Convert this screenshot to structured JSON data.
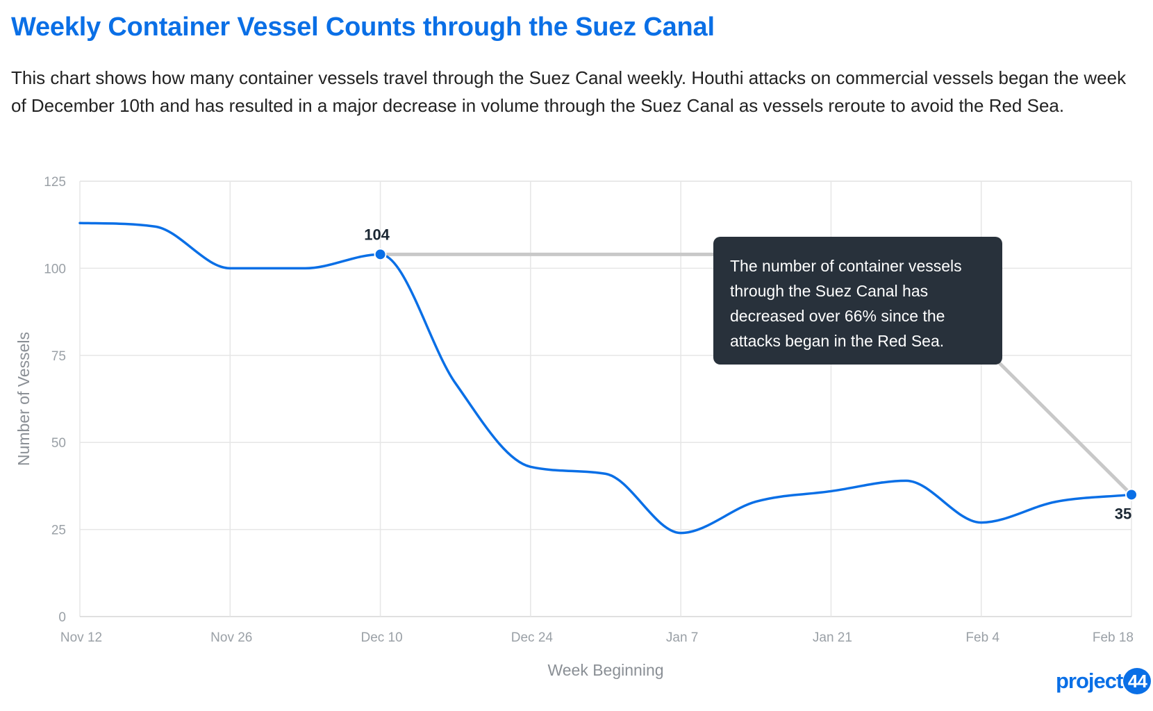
{
  "header": {
    "title": "Weekly Container Vessel Counts through the Suez Canal",
    "description": "This chart shows how many container vessels travel through the Suez Canal weekly. Houthi attacks on commercial vessels began the week of December 10th and has resulted in a major decrease in volume through the Suez Canal as vessels reroute to avoid the Red Sea."
  },
  "chart_data": {
    "type": "line",
    "xlabel": "Week Beginning",
    "ylabel": "Number of Vessels",
    "ylim": [
      0,
      125
    ],
    "y_ticks": [
      0,
      25,
      50,
      75,
      100,
      125
    ],
    "x_tick_labels": [
      "Nov 12",
      "Nov 26",
      "Dec 10",
      "Dec 24",
      "Jan 7",
      "Jan 21",
      "Feb 4",
      "Feb 18"
    ],
    "x": [
      "2023-11-12",
      "2023-11-19",
      "2023-11-26",
      "2023-12-03",
      "2023-12-10",
      "2023-12-17",
      "2023-12-24",
      "2023-12-31",
      "2024-01-07",
      "2024-01-14",
      "2024-01-21",
      "2024-01-28",
      "2024-02-04",
      "2024-02-11",
      "2024-02-18"
    ],
    "series": [
      {
        "name": "",
        "values": [
          113,
          112,
          100,
          100,
          104,
          67,
          43,
          41,
          24,
          33,
          36,
          39,
          27,
          33,
          35
        ]
      }
    ],
    "grid": true,
    "line_color": "#0a6fe6",
    "annotations": [
      {
        "label": "104",
        "x": "2023-12-10",
        "y": 104
      },
      {
        "label": "35",
        "x": "2024-02-18",
        "y": 35
      }
    ],
    "callout_text": "The number of container vessels through the Suez Canal has decreased over 66% since the attacks began in the Red Sea."
  },
  "branding": {
    "logo_word": "project",
    "logo_number": "44"
  },
  "colors": {
    "accent": "#0a6fe6",
    "callout_bg": "#28313b",
    "connector": "#c8c8c8",
    "grid": "#e6e6e6"
  }
}
